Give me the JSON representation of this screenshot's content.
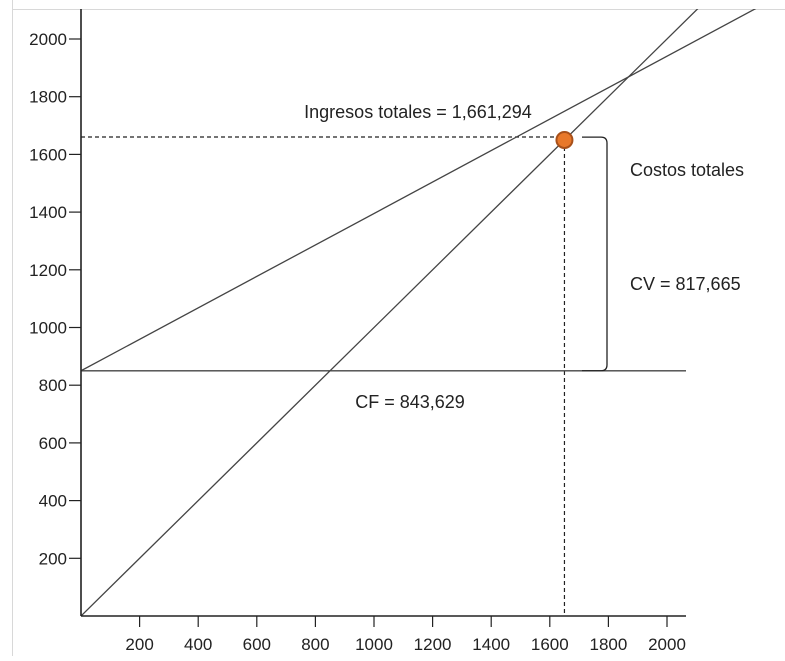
{
  "chart_data": {
    "type": "line",
    "title": "",
    "xlabel": "",
    "ylabel": "",
    "xlim": [
      0,
      2100
    ],
    "ylim": [
      0,
      2100
    ],
    "grid": false,
    "x_ticks": [
      200,
      400,
      600,
      800,
      1000,
      1200,
      1400,
      1600,
      1800,
      2000
    ],
    "y_ticks": [
      200,
      400,
      600,
      800,
      1000,
      1200,
      1400,
      1600,
      1800,
      2000
    ],
    "x_tick_labels": [
      "200",
      "400",
      "600",
      "800",
      "1000",
      "1200",
      "1400",
      "1600",
      "1800",
      "2000"
    ],
    "y_tick_labels": [
      "200",
      "400",
      "600",
      "800",
      "1000",
      "1200",
      "1400",
      "1600",
      "1800",
      "2000"
    ],
    "series": [
      {
        "points": [
          [
            0,
            0
          ],
          [
            2100,
            2100
          ]
        ]
      },
      {
        "points": [
          [
            0,
            850
          ],
          [
            2100,
            1995
          ]
        ]
      },
      {
        "points": [
          [
            0,
            850
          ],
          [
            2100,
            850
          ]
        ]
      }
    ],
    "break_even_point": {
      "x": 1650,
      "y": 1650
    },
    "brace": {
      "y_from": 850,
      "y_to": 1660
    },
    "annotations": {
      "revenue": "Ingresos totales = 1,661,294",
      "total_costs": "Costos totales",
      "variable_costs": "CV = 817,665",
      "fixed_costs": "CF =  843,629"
    },
    "colors": {
      "line": "#444444",
      "axis": "#222222",
      "point_fill": "#e8782a",
      "point_stroke": "#a8501a",
      "frame": "#d8d8d8"
    }
  }
}
